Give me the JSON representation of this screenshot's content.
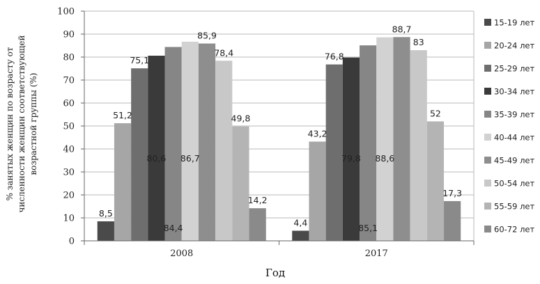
{
  "chart_data": {
    "type": "bar",
    "xlabel": "Год",
    "ylabel_lines": [
      "% занятых женщин по возрасту от",
      "численности женщин соответствующей",
      "возрастной группы (%)"
    ],
    "ylim": [
      0,
      100
    ],
    "yticks": [
      "0",
      "10",
      "20",
      "30",
      "40",
      "50",
      "60",
      "70",
      "80",
      "90",
      "100"
    ],
    "grid": true,
    "legend_position": "right",
    "categories": [
      "2008",
      "2017"
    ],
    "series": [
      {
        "name": "15-19 лет",
        "values": [
          8.5,
          4.4
        ],
        "labels": [
          "8,5",
          "4,4"
        ],
        "color": "#4a4a4a"
      },
      {
        "name": "20-24 лет",
        "values": [
          51.2,
          43.2
        ],
        "labels": [
          "51,2",
          "43,2"
        ],
        "color": "#a6a6a6"
      },
      {
        "name": "25-29 лет",
        "values": [
          75.1,
          76.8
        ],
        "labels": [
          "75,1",
          "76,8"
        ],
        "color": "#6e6e6e"
      },
      {
        "name": "30-34 лет",
        "values": [
          80.6,
          79.8
        ],
        "labels": [
          "80,6",
          "79,8"
        ],
        "color": "#3a3a3a"
      },
      {
        "name": "35-39 лет",
        "values": [
          84.4,
          85.1
        ],
        "labels": [
          "84,4",
          "85,1"
        ],
        "color": "#868686"
      },
      {
        "name": "40-44 лет",
        "values": [
          86.7,
          88.6
        ],
        "labels": [
          "86,7",
          "88,6"
        ],
        "color": "#d2d2d2"
      },
      {
        "name": "45-49 лет",
        "values": [
          85.9,
          88.7
        ],
        "labels": [
          "85,9",
          "88,7"
        ],
        "color": "#8e8e8e"
      },
      {
        "name": "50-54 лет",
        "values": [
          78.4,
          83
        ],
        "labels": [
          "78,4",
          "83"
        ],
        "color": "#c8c8c8"
      },
      {
        "name": "55-59 лет",
        "values": [
          49.8,
          52
        ],
        "labels": [
          "49,8",
          "52"
        ],
        "color": "#b4b4b4"
      },
      {
        "name": "60-72 лет",
        "values": [
          14.2,
          17.3
        ],
        "labels": [
          "14,2",
          "17,3"
        ],
        "color": "#8a8a8a"
      }
    ]
  }
}
